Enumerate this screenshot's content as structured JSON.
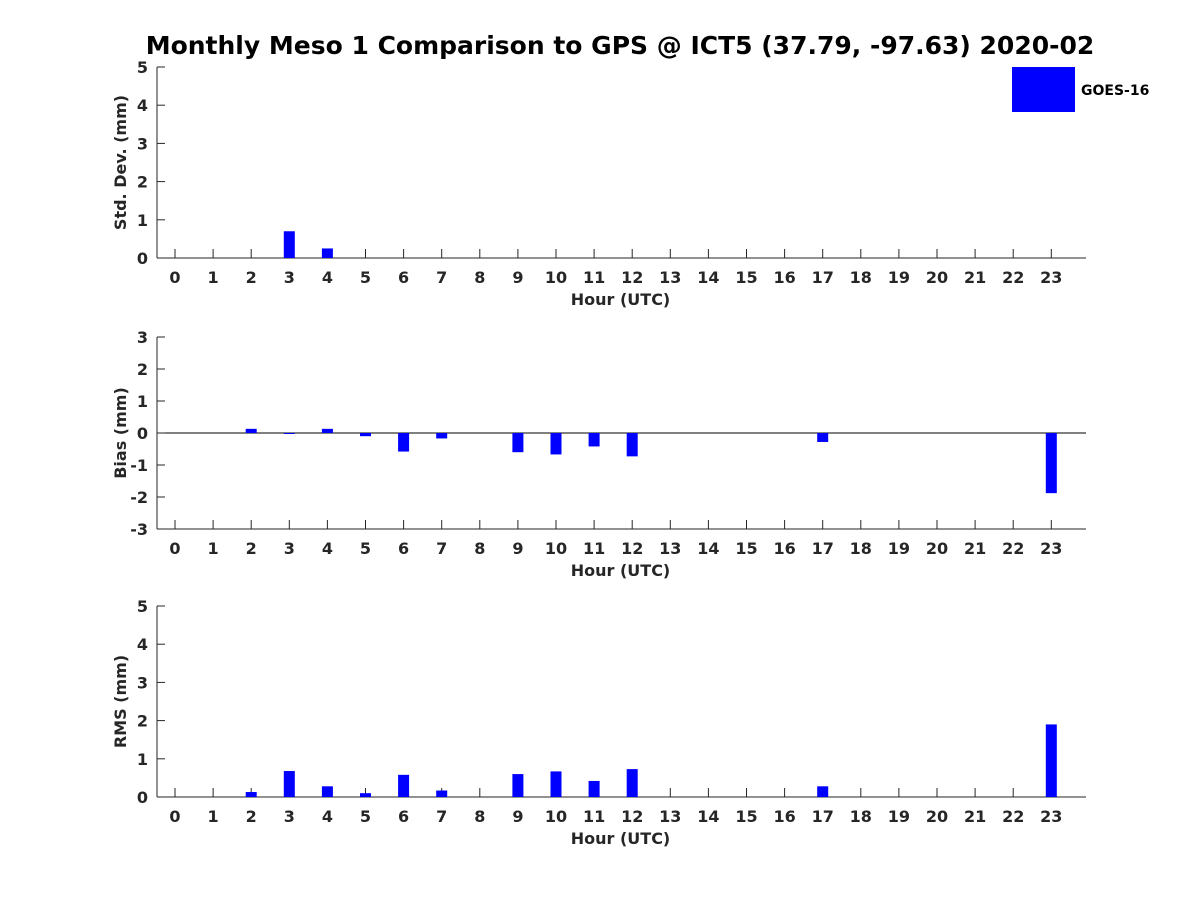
{
  "title": "Monthly Meso 1 Comparison to GPS @ ICT5 (37.79, -97.63) 2020-02",
  "legend": {
    "label": "GOES-16",
    "color": "#0000ff",
    "placement": "top-right"
  },
  "chart_data": [
    {
      "type": "bar",
      "ylabel": "Std. Dev. (mm)",
      "xlabel": "Hour (UTC)",
      "ylim": [
        0,
        5
      ],
      "yticks": [
        0,
        1,
        2,
        3,
        4,
        5
      ],
      "grid": false,
      "categories": [
        "0",
        "1",
        "2",
        "3",
        "4",
        "5",
        "6",
        "7",
        "8",
        "9",
        "10",
        "11",
        "12",
        "13",
        "14",
        "15",
        "16",
        "17",
        "18",
        "19",
        "20",
        "21",
        "22",
        "23"
      ],
      "series": [
        {
          "name": "GOES-16",
          "color": "#0000ff",
          "values": [
            null,
            null,
            null,
            0.7,
            0.25,
            null,
            null,
            null,
            null,
            null,
            null,
            null,
            null,
            null,
            null,
            null,
            null,
            null,
            null,
            null,
            null,
            null,
            null,
            null
          ]
        }
      ]
    },
    {
      "type": "bar",
      "ylabel": "Bias (mm)",
      "xlabel": "Hour (UTC)",
      "ylim": [
        -3,
        3
      ],
      "yticks": [
        -3,
        -2,
        -1,
        0,
        1,
        2,
        3
      ],
      "grid": false,
      "zero_line": true,
      "categories": [
        "0",
        "1",
        "2",
        "3",
        "4",
        "5",
        "6",
        "7",
        "8",
        "9",
        "10",
        "11",
        "12",
        "13",
        "14",
        "15",
        "16",
        "17",
        "18",
        "19",
        "20",
        "21",
        "22",
        "23"
      ],
      "series": [
        {
          "name": "GOES-16",
          "color": "#0000ff",
          "values": [
            null,
            null,
            0.13,
            -0.02,
            0.13,
            -0.1,
            -0.58,
            -0.17,
            null,
            -0.6,
            -0.67,
            -0.42,
            -0.73,
            null,
            null,
            null,
            null,
            -0.28,
            null,
            null,
            null,
            null,
            null,
            -1.88
          ]
        }
      ]
    },
    {
      "type": "bar",
      "ylabel": "RMS (mm)",
      "xlabel": "Hour (UTC)",
      "ylim": [
        0,
        5
      ],
      "yticks": [
        0,
        1,
        2,
        3,
        4,
        5
      ],
      "grid": false,
      "categories": [
        "0",
        "1",
        "2",
        "3",
        "4",
        "5",
        "6",
        "7",
        "8",
        "9",
        "10",
        "11",
        "12",
        "13",
        "14",
        "15",
        "16",
        "17",
        "18",
        "19",
        "20",
        "21",
        "22",
        "23"
      ],
      "series": [
        {
          "name": "GOES-16",
          "color": "#0000ff",
          "values": [
            null,
            null,
            0.13,
            0.68,
            0.28,
            0.1,
            0.58,
            0.17,
            null,
            0.6,
            0.67,
            0.42,
            0.73,
            null,
            null,
            null,
            null,
            0.28,
            null,
            null,
            null,
            null,
            null,
            1.9
          ]
        }
      ]
    }
  ]
}
